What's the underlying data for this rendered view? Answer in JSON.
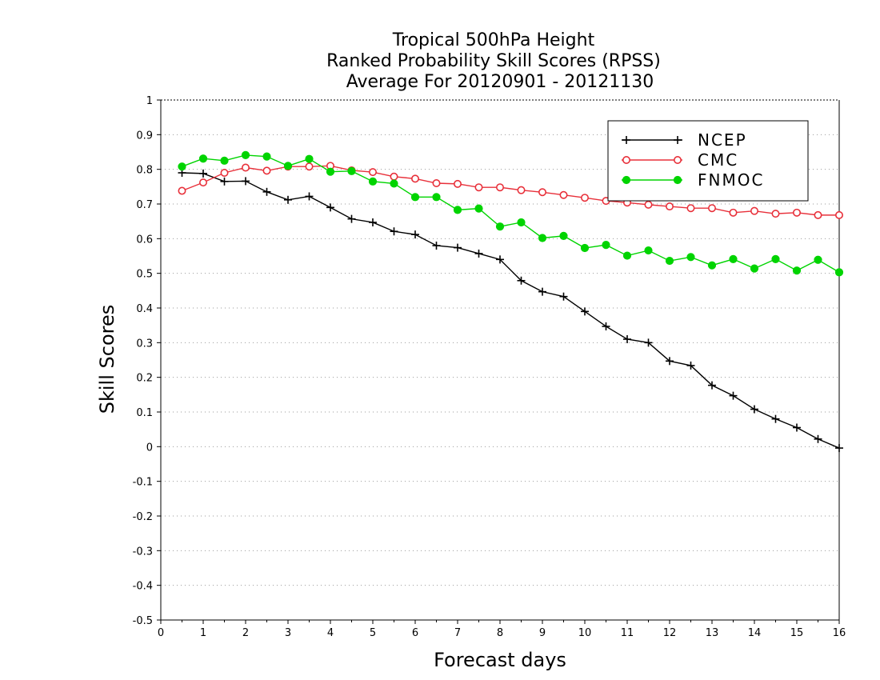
{
  "chart_data": {
    "type": "line",
    "title": [
      "Tropical 500hPa Height",
      "Ranked Probability Skill Scores (RPSS)",
      "Average For 20120901 - 20121130"
    ],
    "xlabel": "Forecast days",
    "ylabel": "Skill Scores",
    "xlim": [
      0,
      16
    ],
    "ylim": [
      -0.5,
      1
    ],
    "x_ticks": [
      0,
      1,
      2,
      3,
      4,
      5,
      6,
      7,
      8,
      9,
      10,
      11,
      12,
      13,
      14,
      15,
      16
    ],
    "y_ticks": [
      -0.5,
      -0.4,
      -0.3,
      -0.2,
      -0.1,
      0,
      0.1,
      0.2,
      0.3,
      0.4,
      0.5,
      0.6,
      0.7,
      0.8,
      0.9,
      1
    ],
    "y_tick_labels": [
      "-0.5",
      "-0.4",
      "-0.3",
      "-0.2",
      "-0.1",
      "0",
      "0.1",
      "0.2",
      "0.3",
      "0.4",
      "0.5",
      "0.6",
      "0.7",
      "0.8",
      "0.9",
      "1"
    ],
    "grid": "horizontal dotted",
    "legend_position": "top-right",
    "x": [
      0.5,
      1,
      1.5,
      2,
      2.5,
      3,
      3.5,
      4,
      4.5,
      5,
      5.5,
      6,
      6.5,
      7,
      7.5,
      8,
      8.5,
      9,
      9.5,
      10,
      10.5,
      11,
      11.5,
      12,
      12.5,
      13,
      13.5,
      14,
      14.5,
      15,
      15.5,
      16
    ],
    "series": [
      {
        "name": "NCEP",
        "color": "#000000",
        "marker": "plus",
        "values": [
          0.79,
          0.788,
          0.765,
          0.766,
          0.735,
          0.712,
          0.722,
          0.69,
          0.657,
          0.647,
          0.621,
          0.612,
          0.58,
          0.574,
          0.557,
          0.54,
          0.479,
          0.447,
          0.433,
          0.39,
          0.347,
          0.31,
          0.3,
          0.247,
          0.234,
          0.177,
          0.147,
          0.108,
          0.08,
          0.055,
          0.022,
          -0.004
        ]
      },
      {
        "name": "CMC",
        "color": "#e8303a",
        "marker": "open-circle",
        "values": [
          0.738,
          0.762,
          0.79,
          0.805,
          0.796,
          0.808,
          0.808,
          0.81,
          0.797,
          0.792,
          0.779,
          0.773,
          0.76,
          0.758,
          0.748,
          0.748,
          0.74,
          0.734,
          0.726,
          0.718,
          0.709,
          0.704,
          0.698,
          0.693,
          0.688,
          0.688,
          0.675,
          0.68,
          0.672,
          0.675,
          0.668,
          0.668
        ]
      },
      {
        "name": "FNMOC",
        "color": "#00d400",
        "marker": "filled-circle",
        "values": [
          0.808,
          0.831,
          0.825,
          0.841,
          0.837,
          0.81,
          0.83,
          0.793,
          0.795,
          0.765,
          0.759,
          0.72,
          0.72,
          0.683,
          0.687,
          0.635,
          0.647,
          0.602,
          0.608,
          0.573,
          0.582,
          0.551,
          0.566,
          0.536,
          0.547,
          0.523,
          0.541,
          0.514,
          0.541,
          0.508,
          0.539,
          0.503
        ]
      }
    ]
  }
}
